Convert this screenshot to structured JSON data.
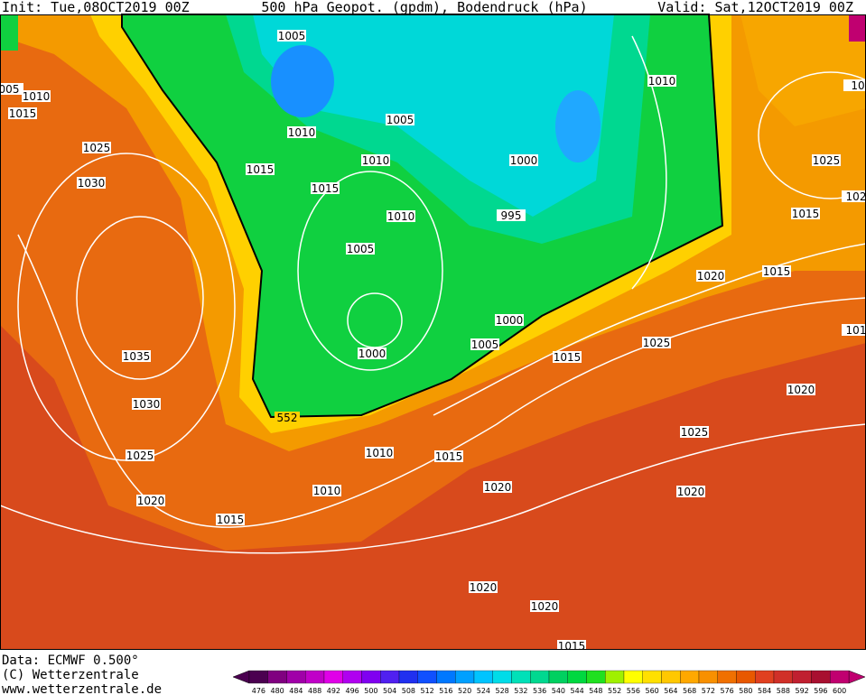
{
  "header": {
    "init": "Init: Tue,08OCT2019 00Z",
    "title": "500 hPa Geopot. (gpdm), Bodendruck (hPa)",
    "valid": "Valid: Sat,12OCT2019 00Z"
  },
  "map": {
    "contour_label": "552",
    "isobar_labels": [
      "1005",
      "005",
      "1010",
      "1015",
      "1025",
      "1030",
      "1035",
      "1030",
      "1025",
      "1020",
      "1015",
      "1010",
      "1010",
      "1015",
      "1020",
      "1005",
      "1000",
      "1000",
      "1005",
      "1010",
      "1015",
      "1015",
      "1010",
      "1010",
      "1005",
      "1000",
      "995",
      "1010",
      "1025",
      "1015",
      "1015",
      "1020",
      "1025",
      "1015",
      "1020",
      "1025",
      "1020",
      "1020",
      "1020",
      "1015",
      "10",
      "102",
      "101"
    ]
  },
  "footer": {
    "data": "Data: ECMWF   0.500°",
    "copyright": "(C) Wetterzentrale",
    "url": "www.wetterzentrale.de"
  },
  "legend": {
    "values": [
      476,
      480,
      484,
      488,
      492,
      496,
      500,
      504,
      508,
      512,
      516,
      520,
      524,
      528,
      532,
      536,
      540,
      544,
      548,
      552,
      556,
      560,
      564,
      568,
      572,
      576,
      580,
      584,
      588,
      592,
      596,
      600
    ],
    "colors": [
      "#4b0050",
      "#800080",
      "#a000a8",
      "#c000c8",
      "#e000e8",
      "#b000f0",
      "#8000f0",
      "#5020f0",
      "#2030f0",
      "#1050ff",
      "#0078ff",
      "#00a0ff",
      "#00c4ff",
      "#00dce8",
      "#00e0b8",
      "#00d890",
      "#00d060",
      "#00d840",
      "#20e020",
      "#a0f000",
      "#ffff00",
      "#ffe000",
      "#ffc800",
      "#ffa800",
      "#f89000",
      "#f07000",
      "#e85800",
      "#e04020",
      "#d03028",
      "#c02030",
      "#a81030",
      "#c00070"
    ]
  }
}
